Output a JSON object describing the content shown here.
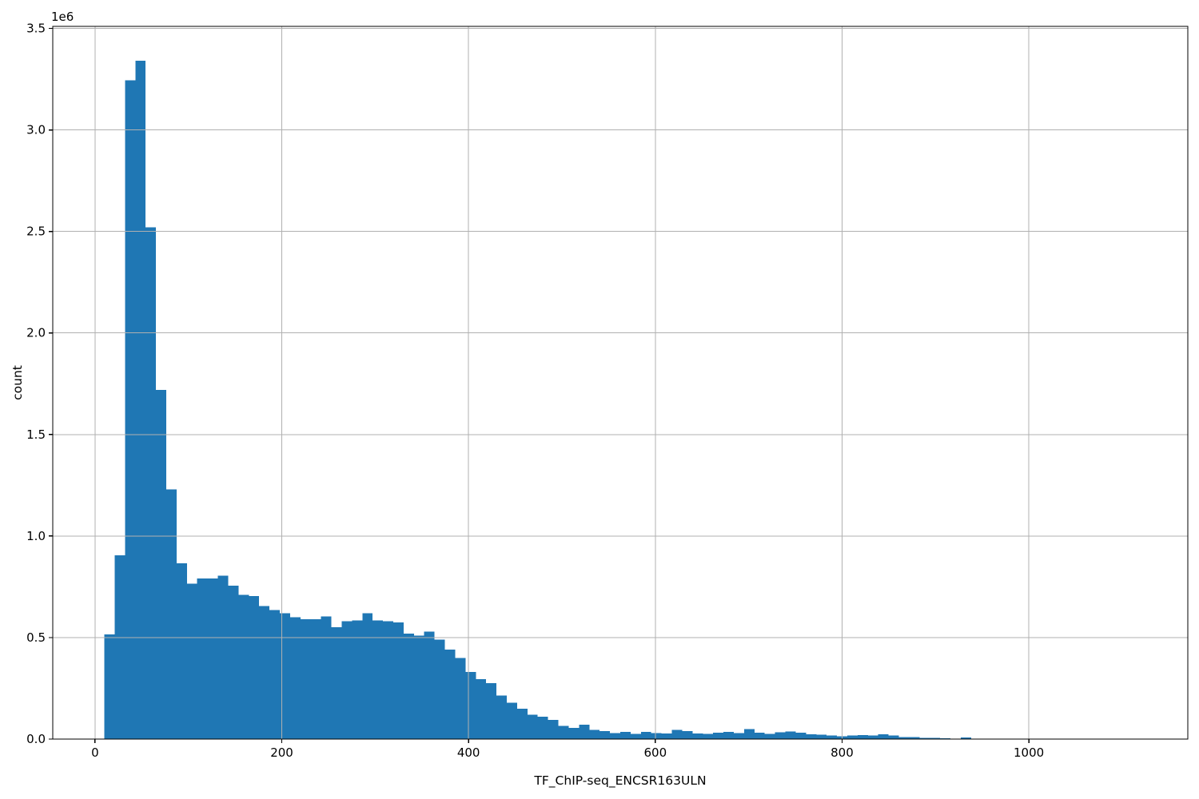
{
  "figure": {
    "background": "#ffffff",
    "spine_color": "#000000",
    "tick_color": "#000000"
  },
  "chart_data": {
    "type": "bar",
    "subtype": "histogram",
    "title": "",
    "xlabel": "TF_ChIP-seq_ENCSR163ULN",
    "ylabel": "count",
    "y_offset_label": "1e6",
    "bar_color": "#1f77b4",
    "grid": true,
    "grid_color": "#b0b0b0",
    "legend": "none",
    "bin_start": 10,
    "bin_width": 11.05,
    "xlim": [
      -45.25,
      1170.25
    ],
    "ylim": [
      0,
      3510000
    ],
    "x_ticks": [
      0,
      200,
      400,
      600,
      800,
      1000
    ],
    "x_tick_labels": [
      "0",
      "200",
      "400",
      "600",
      "800",
      "1000"
    ],
    "y_ticks": [
      0,
      500000,
      1000000,
      1500000,
      2000000,
      2500000,
      3000000,
      3500000
    ],
    "y_tick_labels": [
      "0.0",
      "0.5",
      "1.0",
      "1.5",
      "2.0",
      "2.5",
      "3.0",
      "3.5"
    ],
    "counts": [
      515000,
      905000,
      3245000,
      3340000,
      2520000,
      1720000,
      1230000,
      865000,
      765000,
      790000,
      790000,
      805000,
      755000,
      710000,
      705000,
      655000,
      635000,
      620000,
      600000,
      590000,
      590000,
      605000,
      550000,
      580000,
      585000,
      620000,
      585000,
      580000,
      575000,
      520000,
      510000,
      530000,
      490000,
      440000,
      400000,
      330000,
      295000,
      275000,
      215000,
      180000,
      150000,
      120000,
      110000,
      95000,
      65000,
      55000,
      70000,
      45000,
      40000,
      30000,
      35000,
      25000,
      35000,
      30000,
      28000,
      45000,
      40000,
      28000,
      25000,
      31000,
      35000,
      30000,
      49000,
      31000,
      26000,
      34000,
      37000,
      32000,
      24000,
      21000,
      18000,
      14000,
      17000,
      20000,
      18000,
      23000,
      18000,
      10000,
      9000,
      6000,
      5000,
      4000,
      1000,
      8000,
      2000,
      1000,
      1000,
      500,
      300,
      200,
      200,
      100,
      100,
      100,
      100,
      0,
      0,
      0,
      0,
      100
    ]
  }
}
